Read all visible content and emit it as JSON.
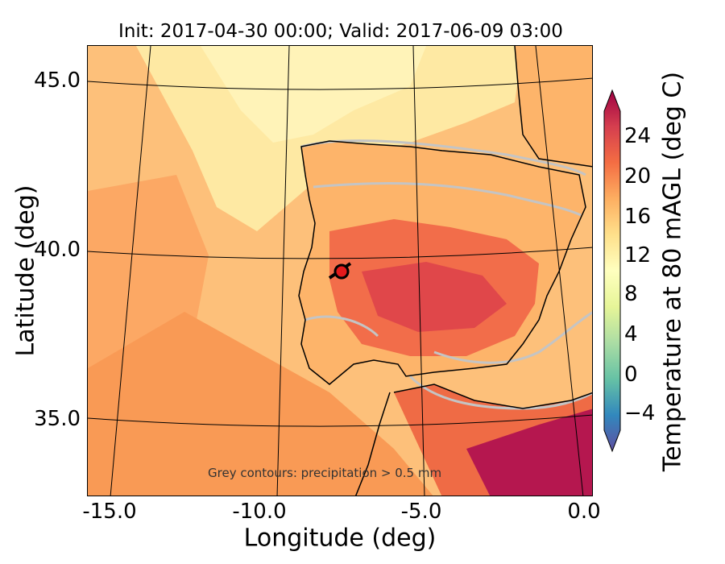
{
  "title": "Init: 2017-04-30 00:00; Valid: 2017-06-09 03:00",
  "axes": {
    "xlabel": "Longitude (deg)",
    "ylabel": "Latitude (deg)",
    "xticks": [
      "-15.0",
      "-10.0",
      "-5.0",
      "0.0"
    ],
    "yticks": [
      "45.0",
      "40.0",
      "35.0"
    ]
  },
  "annotation": "Grey contours: precipitation > 0.5 mm",
  "colorbar": {
    "label": "Temperature at 80 mAGL (deg C)",
    "ticks": [
      "24",
      "20",
      "16",
      "12",
      "8",
      "4",
      "0",
      "−4"
    ],
    "range": [
      -7,
      27
    ],
    "colors": [
      "#5e4fa2",
      "#3288bd",
      "#66c2a5",
      "#abdda4",
      "#e6f598",
      "#ffffbf",
      "#fee08b",
      "#fdae61",
      "#f46d43",
      "#d53e4f",
      "#9e0142"
    ]
  },
  "marker": {
    "color": "#e31a1c",
    "icon": "location-marker-icon"
  }
}
